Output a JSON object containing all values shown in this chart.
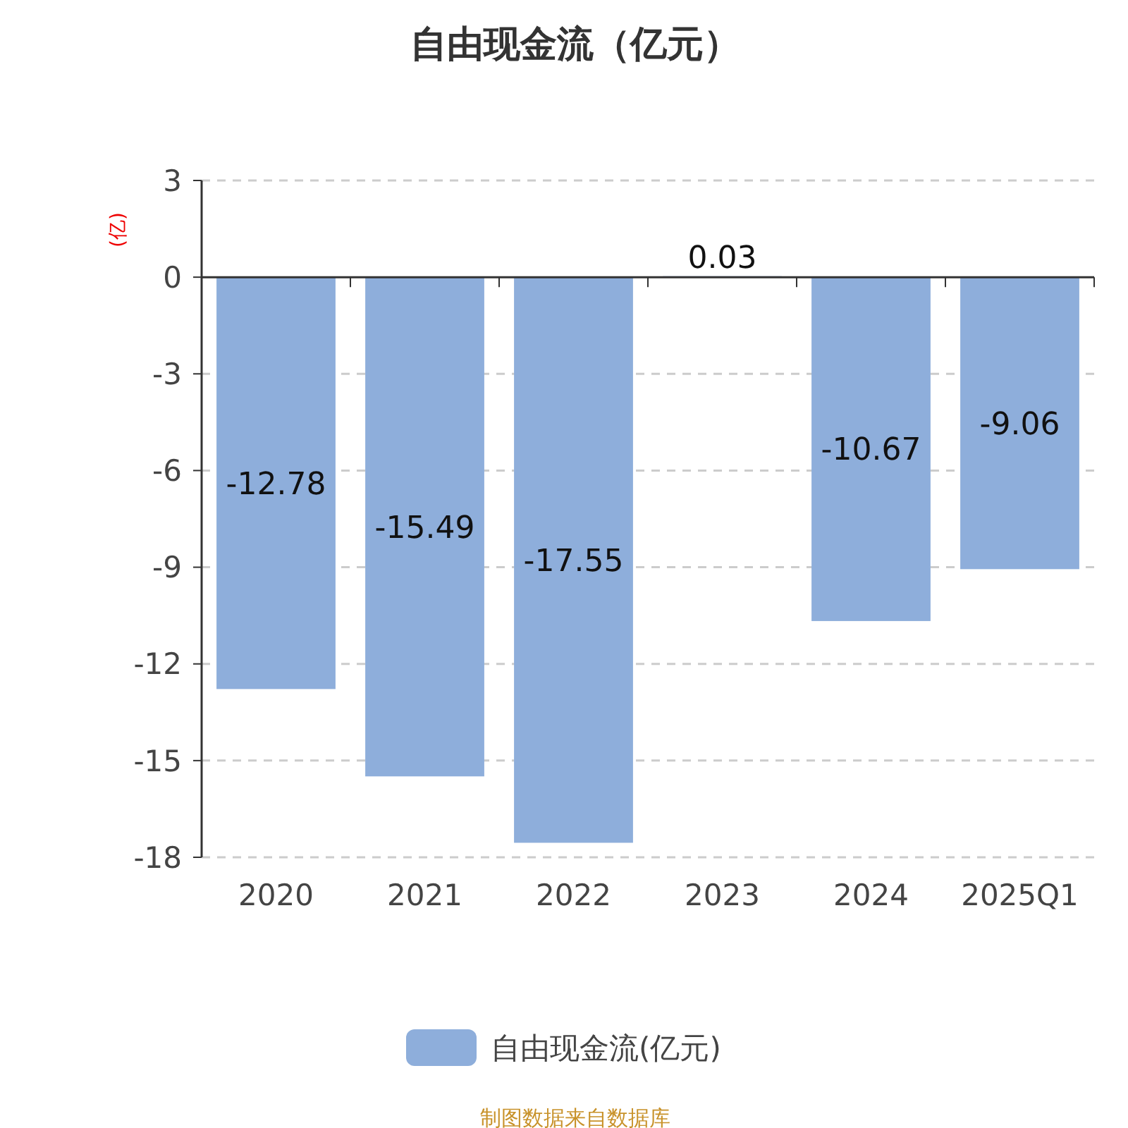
{
  "chart_data": {
    "type": "bar",
    "title": "自由现金流（亿元）",
    "ylabel": "(亿)",
    "categories": [
      "2020",
      "2021",
      "2022",
      "2023",
      "2024",
      "2025Q1"
    ],
    "series": [
      {
        "name": "自由现金流(亿元)",
        "color": "#8eaedb",
        "values": [
          -12.78,
          -15.49,
          -17.55,
          0.03,
          -10.67,
          -9.06
        ]
      }
    ],
    "ylim": [
      -18,
      3
    ],
    "yticks": [
      -18,
      -15,
      -12,
      -9,
      -6,
      -3,
      0,
      3
    ],
    "grid": "y",
    "legend": "bottom",
    "data_labels": true,
    "annotations": [
      "制图数据来自数据库"
    ]
  }
}
